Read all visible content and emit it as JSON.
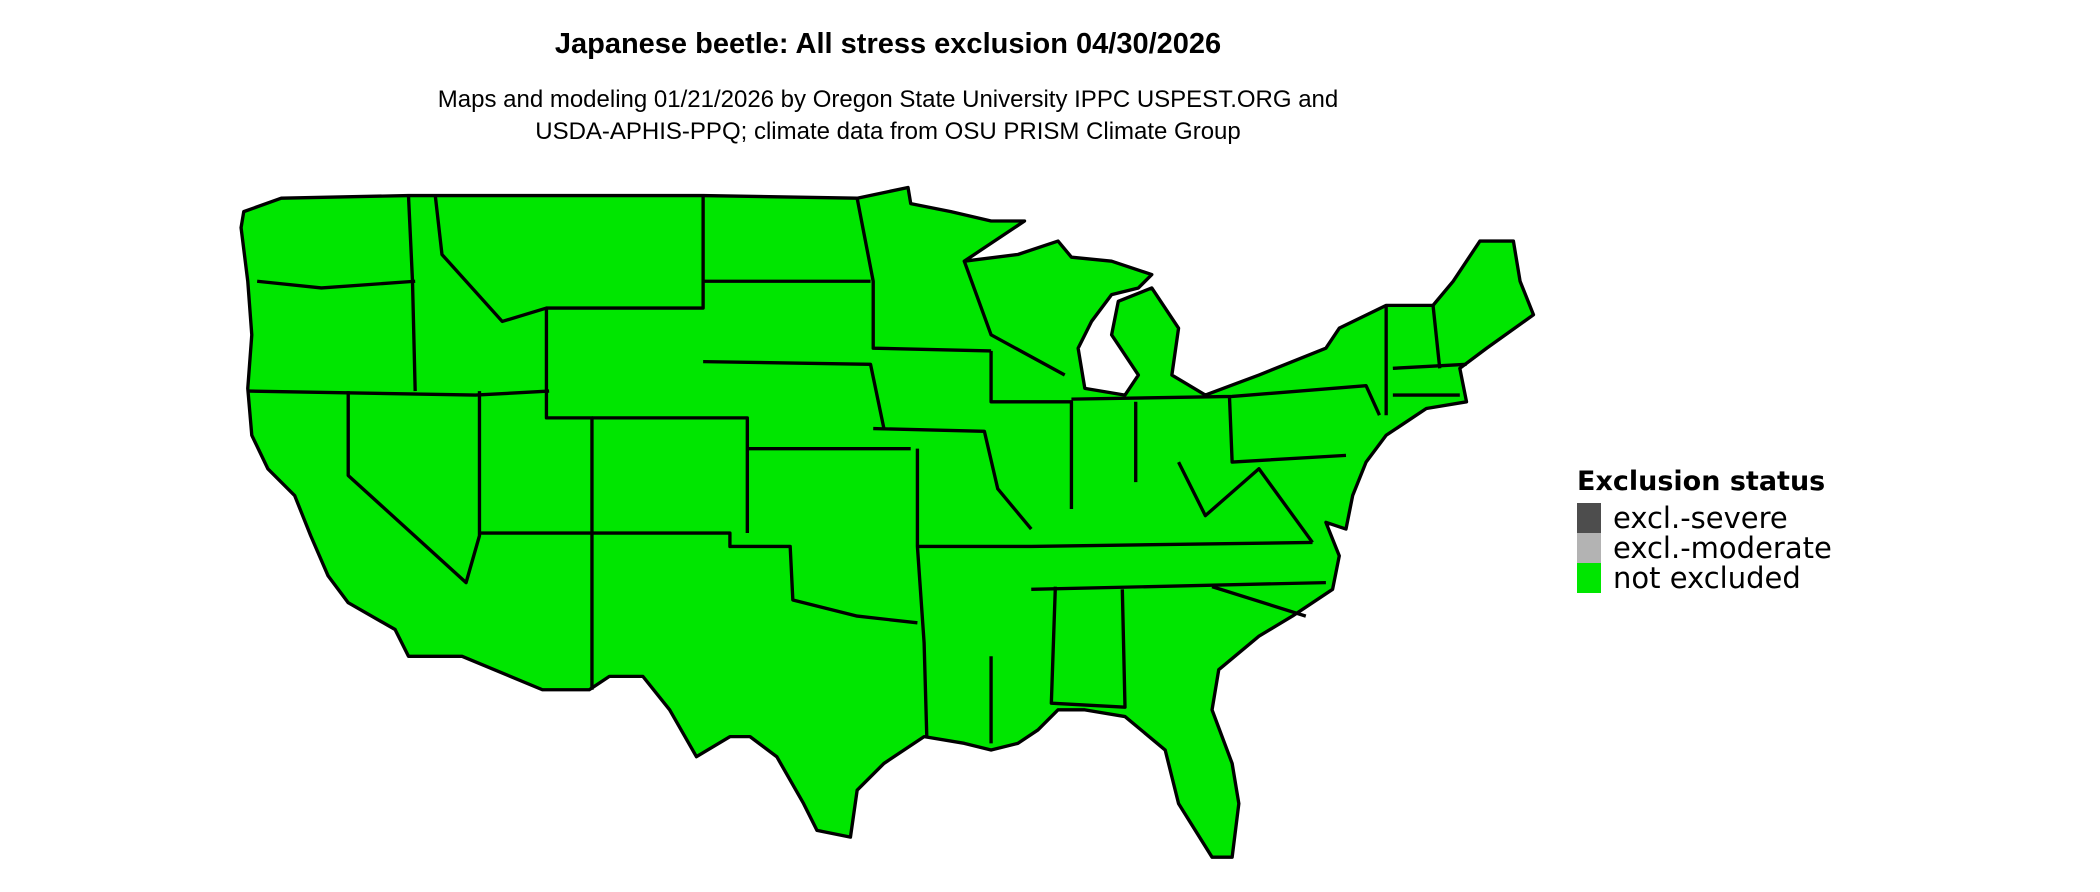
{
  "title": "Japanese beetle: All stress exclusion 04/30/2026",
  "subtitle_lines": [
    "Maps and modeling 01/21/2026 by Oregon State University IPPC USPEST.ORG and",
    "USDA-APHIS-PPQ; climate data from OSU PRISM Climate Group"
  ],
  "map": {
    "region": "Contiguous United States",
    "state_boundaries": true,
    "fill_status": "not excluded",
    "fill_color": "#00E600",
    "border_color": "#000000"
  },
  "legend": {
    "title": "Exclusion status",
    "items": [
      {
        "label": "excl.-severe",
        "color": "#4D4D4D"
      },
      {
        "label": "excl.-moderate",
        "color": "#B3B3B3"
      },
      {
        "label": "not excluded",
        "color": "#00E600"
      }
    ]
  }
}
